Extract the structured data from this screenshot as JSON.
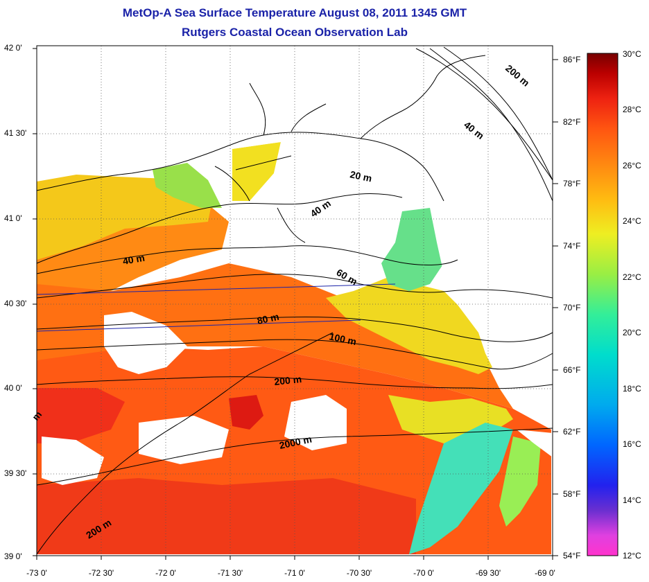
{
  "header": {
    "title": "MetOp-A Sea Surface Temperature August 08, 2011 1345 GMT",
    "subtitle": "Rutgers Coastal Ocean Observation Lab"
  },
  "axes": {
    "latitude_labels": [
      "42 0'",
      "41 30'",
      "41 0'",
      "40 30'",
      "40 0'",
      "39 30'",
      "39 0'"
    ],
    "longitude_labels": [
      "-73 0'",
      "-72 30'",
      "-72 0'",
      "-71 30'",
      "-71 0'",
      "-70 30'",
      "-70 0'",
      "-69 30'",
      "-69 0'"
    ],
    "fahrenheit_labels": [
      "86°F",
      "82°F",
      "78°F",
      "74°F",
      "70°F",
      "66°F",
      "62°F",
      "58°F",
      "54°F"
    ],
    "celsius_labels": [
      "30°C",
      "28°C",
      "26°C",
      "24°C",
      "22°C",
      "20°C",
      "18°C",
      "16°C",
      "14°C",
      "12°C"
    ]
  },
  "map": {
    "lat_range": [
      39.0,
      42.0
    ],
    "lon_range": [
      -73.0,
      -69.0
    ],
    "grid": true,
    "contour_labels": [
      "200 m",
      "40 m",
      "20 m",
      "40 m",
      "40 m",
      "60 m",
      "80 m",
      "100 m",
      "200 m",
      "2000 m",
      "200 m",
      "m"
    ]
  },
  "colorbar": {
    "range_c": [
      12,
      30
    ],
    "colors": [
      "#ff33cc",
      "#cc44dd",
      "#6a2fd0",
      "#2222ee",
      "#0066ff",
      "#00aaee",
      "#00ddcc",
      "#33ee99",
      "#99ee44",
      "#eeee22",
      "#ffbb11",
      "#ff8811",
      "#ff5511",
      "#ee2211",
      "#cc0000",
      "#990000",
      "#770000"
    ]
  }
}
